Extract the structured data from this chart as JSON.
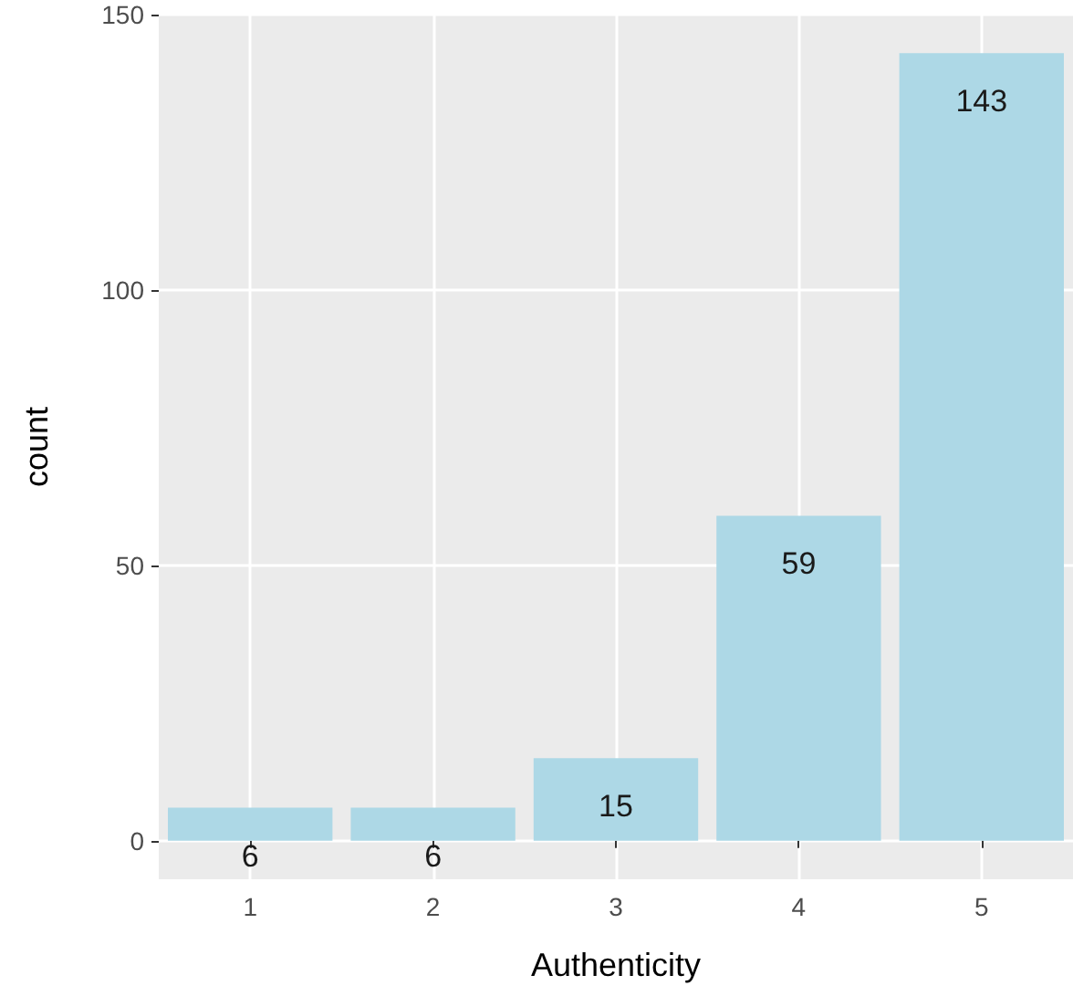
{
  "chart_data": {
    "type": "bar",
    "xlabel": "Authenticity",
    "ylabel": "count",
    "categories": [
      "1",
      "2",
      "3",
      "4",
      "5"
    ],
    "values": [
      6,
      6,
      15,
      59,
      143
    ],
    "color": "#add8e6",
    "ylim": [
      -7,
      150
    ],
    "yticks": [
      0,
      50,
      100,
      150
    ],
    "grid": true,
    "data_labels": true
  }
}
